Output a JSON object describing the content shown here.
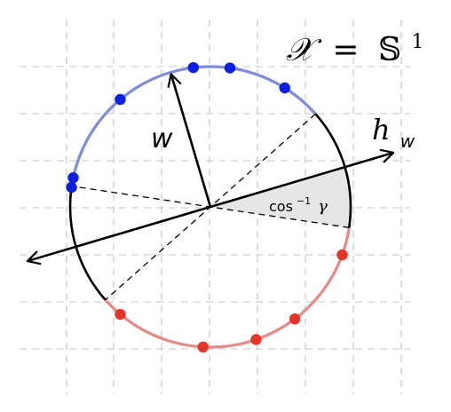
{
  "title": {
    "lhs": "𝒳",
    "eq": "=",
    "rhs": "𝕊",
    "rhs_sup": "1"
  },
  "labels": {
    "w": "w",
    "hyperplane_main": "h",
    "hyperplane_sub": "w",
    "angle_func": "cos",
    "angle_sup": "−1",
    "angle_var": "γ"
  },
  "colors": {
    "positive_points": "#0b1fe0",
    "negative_points": "#e53528",
    "positive_arc": "#7f8cdc",
    "negative_arc": "#e48b85",
    "circle": "#000000",
    "grid": "#c4c4c4",
    "wedge_fill": "#e6e6e6"
  },
  "points": {
    "positive_angles_deg": [
      97,
      82,
      58,
      130,
      168,
      172
    ],
    "negative_angles_deg": [
      -20,
      -53,
      -71,
      -93,
      -130
    ]
  }
}
